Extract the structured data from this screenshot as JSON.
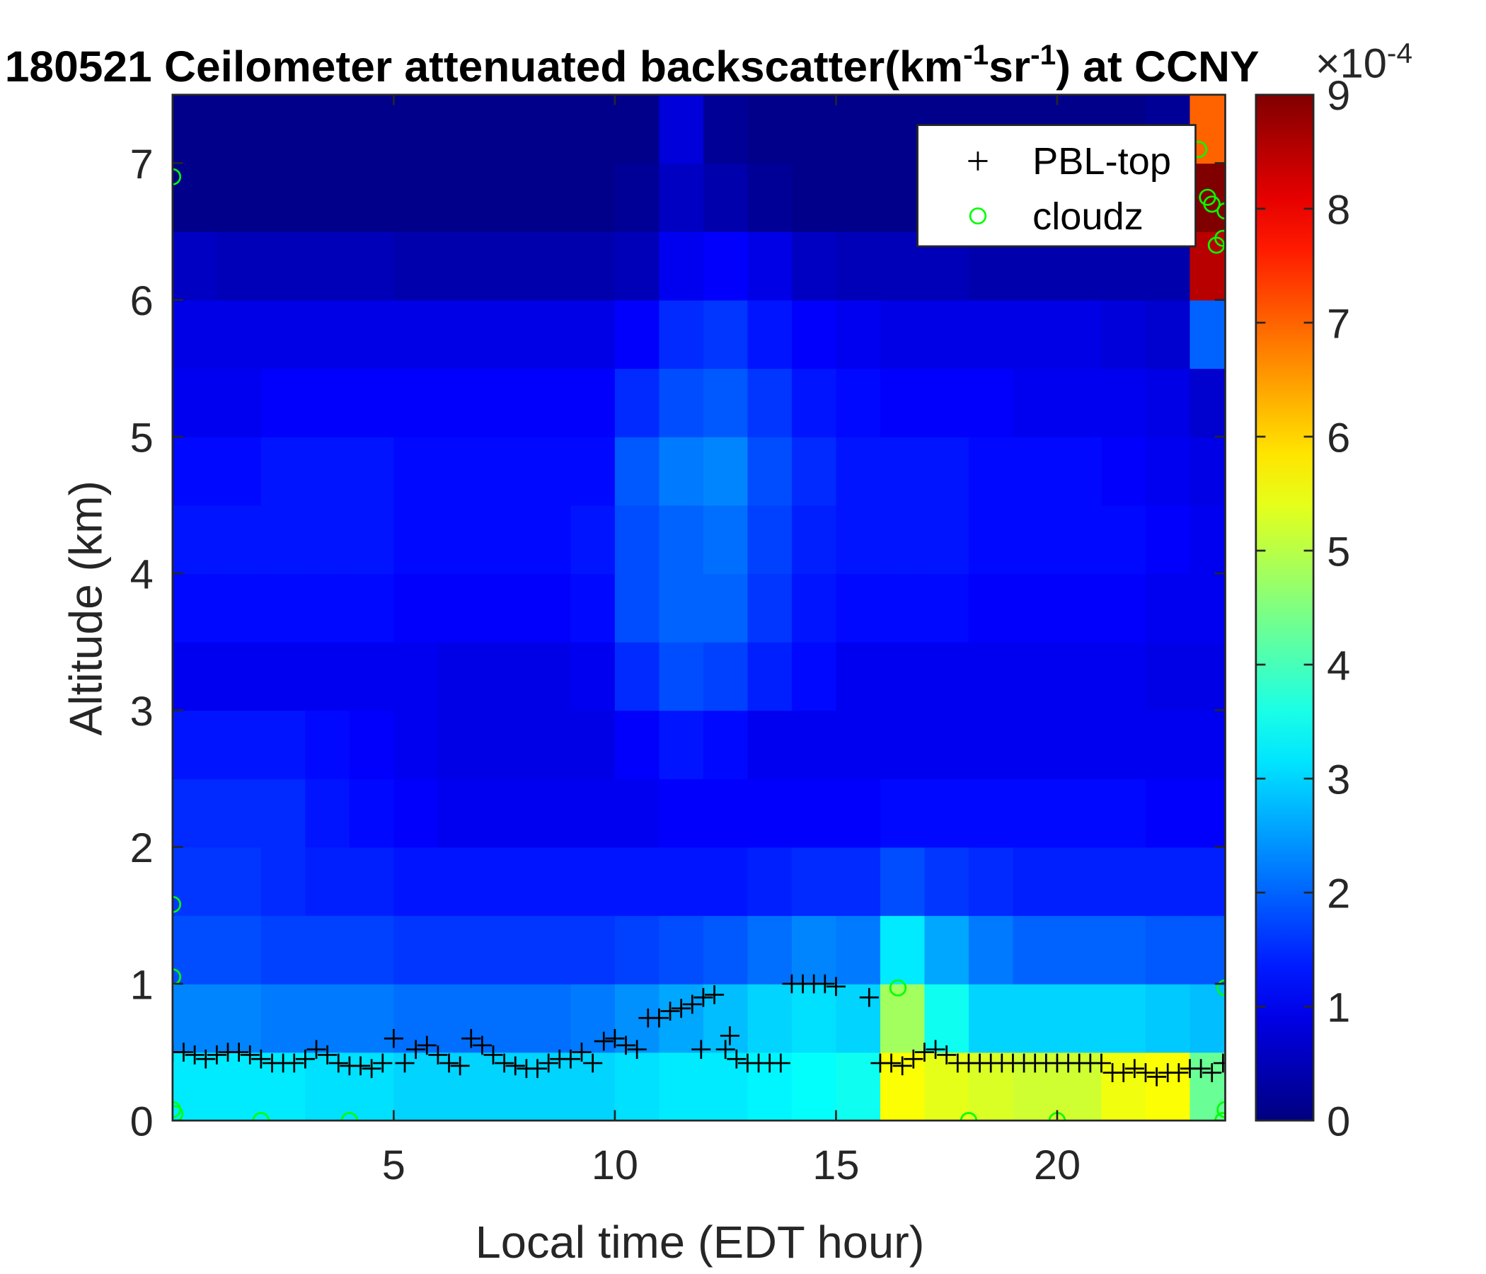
{
  "chart_data": {
    "type": "heatmap",
    "title_parts": [
      "180521 Ceilometer attenuated backscatter(km",
      "-1",
      "sr",
      "-1",
      ") at CCNY"
    ],
    "x_label": "Local time (EDT hour)",
    "y_label": "Altitude (km)",
    "xlim": [
      0,
      23.8
    ],
    "xticks": [
      5,
      10,
      15,
      20
    ],
    "ylim": [
      0,
      7.5
    ],
    "yticks": [
      0,
      1,
      2,
      3,
      4,
      5,
      6,
      7
    ],
    "clim": [
      0,
      9
    ],
    "cticks": [
      0,
      1,
      2,
      3,
      4,
      5,
      6,
      7,
      8,
      9
    ],
    "colorbar_multiplier": {
      "base": "×10",
      "exponent": "-4"
    },
    "colormap": "jet",
    "legend": "upper right",
    "z_x": [
      0.5,
      1.5,
      2.5,
      3.5,
      4.5,
      5.5,
      6.5,
      7.5,
      8.5,
      9.5,
      10.5,
      11.5,
      12.5,
      13.5,
      14.5,
      15.5,
      16.5,
      17.5,
      18.5,
      19.5,
      20.5,
      21.5,
      22.5,
      23.5
    ],
    "z_y": [
      0.25,
      0.75,
      1.25,
      1.75,
      2.25,
      2.75,
      3.25,
      3.75,
      4.25,
      4.75,
      5.25,
      5.75,
      6.25,
      6.75,
      7.25
    ],
    "z": [
      [
        3.2,
        3.2,
        3.2,
        3.1,
        3.1,
        3.0,
        3.0,
        3.0,
        3.0,
        3.0,
        3.1,
        3.2,
        3.2,
        3.3,
        3.4,
        3.5,
        5.6,
        5.4,
        5.3,
        5.2,
        5.2,
        5.5,
        5.6,
        4.3
      ],
      [
        2.3,
        2.3,
        2.2,
        2.2,
        2.2,
        2.1,
        2.1,
        2.1,
        2.1,
        2.2,
        2.4,
        2.6,
        2.8,
        3.0,
        3.1,
        3.0,
        4.8,
        3.5,
        3.0,
        3.0,
        3.0,
        3.0,
        2.9,
        2.8
      ],
      [
        1.8,
        1.8,
        1.7,
        1.7,
        1.7,
        1.6,
        1.6,
        1.6,
        1.6,
        1.6,
        1.7,
        1.8,
        1.9,
        2.1,
        2.3,
        2.2,
        3.2,
        2.6,
        2.2,
        2.0,
        2.0,
        2.0,
        1.9,
        1.9
      ],
      [
        1.6,
        1.6,
        1.5,
        1.4,
        1.4,
        1.3,
        1.3,
        1.3,
        1.3,
        1.3,
        1.3,
        1.3,
        1.3,
        1.4,
        1.5,
        1.5,
        1.8,
        1.6,
        1.5,
        1.4,
        1.4,
        1.4,
        1.4,
        1.4
      ],
      [
        1.5,
        1.5,
        1.5,
        1.3,
        1.2,
        1.1,
        1.0,
        1.0,
        1.0,
        1.0,
        1.0,
        1.1,
        1.1,
        1.1,
        1.1,
        1.1,
        1.2,
        1.2,
        1.2,
        1.2,
        1.2,
        1.2,
        1.1,
        1.1
      ],
      [
        1.3,
        1.3,
        1.3,
        1.2,
        1.1,
        1.0,
        0.9,
        0.9,
        0.9,
        0.9,
        1.1,
        1.3,
        1.2,
        1.0,
        1.0,
        1.0,
        1.0,
        1.0,
        1.0,
        1.0,
        1.0,
        1.0,
        1.0,
        1.0
      ],
      [
        1.0,
        1.0,
        1.0,
        1.0,
        1.0,
        1.0,
        0.9,
        0.9,
        0.9,
        1.0,
        1.5,
        1.8,
        1.7,
        1.4,
        1.2,
        1.0,
        1.0,
        1.0,
        1.0,
        1.0,
        1.0,
        1.0,
        0.9,
        0.9
      ],
      [
        1.2,
        1.2,
        1.2,
        1.2,
        1.2,
        1.1,
        1.1,
        1.1,
        1.1,
        1.2,
        1.8,
        2.0,
        2.0,
        1.6,
        1.3,
        1.2,
        1.2,
        1.2,
        1.1,
        1.1,
        1.1,
        1.1,
        1.0,
        1.0
      ],
      [
        1.3,
        1.3,
        1.3,
        1.3,
        1.3,
        1.2,
        1.2,
        1.2,
        1.2,
        1.3,
        1.8,
        2.0,
        2.1,
        1.7,
        1.4,
        1.3,
        1.3,
        1.3,
        1.2,
        1.2,
        1.2,
        1.2,
        1.1,
        1.0
      ],
      [
        1.2,
        1.2,
        1.3,
        1.3,
        1.3,
        1.2,
        1.2,
        1.2,
        1.2,
        1.2,
        1.9,
        2.2,
        2.3,
        1.8,
        1.5,
        1.3,
        1.3,
        1.3,
        1.2,
        1.2,
        1.2,
        1.1,
        1.0,
        0.9
      ],
      [
        1.0,
        1.0,
        1.1,
        1.1,
        1.1,
        1.1,
        1.1,
        1.1,
        1.1,
        1.1,
        1.5,
        1.8,
        1.9,
        1.6,
        1.3,
        1.2,
        1.1,
        1.1,
        1.1,
        1.0,
        1.0,
        1.0,
        0.9,
        0.7
      ],
      [
        0.9,
        0.9,
        0.9,
        0.9,
        0.9,
        0.9,
        0.9,
        0.9,
        0.9,
        0.9,
        1.1,
        1.5,
        1.6,
        1.3,
        1.1,
        1.0,
        0.9,
        0.9,
        0.9,
        0.9,
        0.9,
        0.8,
        0.7,
        2.0
      ],
      [
        0.6,
        0.5,
        0.5,
        0.5,
        0.5,
        0.4,
        0.4,
        0.4,
        0.4,
        0.4,
        0.5,
        1.0,
        1.1,
        0.9,
        0.6,
        0.5,
        0.5,
        0.5,
        0.4,
        0.4,
        0.4,
        0.4,
        0.4,
        8.5
      ],
      [
        0.1,
        0.1,
        0.1,
        0.1,
        0.1,
        0.1,
        0.1,
        0.1,
        0.1,
        0.1,
        0.2,
        0.6,
        0.4,
        0.2,
        0.1,
        0.1,
        0.1,
        0.1,
        0.1,
        0.1,
        0.1,
        0.1,
        0.1,
        9
      ],
      [
        0.1,
        0.1,
        0.1,
        0.1,
        0.1,
        0.1,
        0.1,
        0.1,
        0.1,
        0.1,
        0.1,
        0.8,
        0.2,
        0.1,
        0.1,
        0.1,
        0.1,
        0.1,
        0.1,
        0.1,
        0.1,
        0.1,
        0.2,
        7
      ]
    ],
    "series": [
      {
        "name": "PBL-top",
        "color": "#000000",
        "marker": "+",
        "x": [
          0,
          0.25,
          0.5,
          0.75,
          1,
          1.25,
          1.5,
          1.75,
          2,
          2.25,
          2.5,
          2.75,
          3,
          3.25,
          3.5,
          3.75,
          4,
          4.25,
          4.5,
          4.75,
          5,
          5.25,
          5.5,
          5.75,
          6,
          6.25,
          6.5,
          6.75,
          7,
          7.25,
          7.5,
          7.75,
          8,
          8.25,
          8.5,
          8.75,
          9,
          9.25,
          9.5,
          9.75,
          10,
          10.25,
          10.5,
          10.75,
          11,
          11.25,
          11.5,
          11.75,
          11.95,
          12,
          12.25,
          12.5,
          12.6,
          12.75,
          13,
          13.25,
          13.5,
          13.75,
          14,
          14.25,
          14.5,
          14.75,
          15,
          15.75,
          16,
          16.25,
          16.5,
          16.75,
          17,
          17.25,
          17.5,
          17.75,
          18,
          18.25,
          18.5,
          18.75,
          19,
          19.25,
          19.5,
          19.75,
          20,
          20.25,
          20.5,
          20.75,
          21,
          21.25,
          21.5,
          21.75,
          22,
          22.25,
          22.5,
          22.75,
          23,
          23.25,
          23.5,
          23.75
        ],
        "values": [
          0.5,
          0.5,
          0.48,
          0.45,
          0.48,
          0.5,
          0.5,
          0.48,
          0.45,
          0.42,
          0.42,
          0.42,
          0.45,
          0.52,
          0.48,
          0.42,
          0.4,
          0.4,
          0.38,
          0.42,
          0.6,
          0.42,
          0.52,
          0.55,
          0.48,
          0.42,
          0.4,
          0.6,
          0.55,
          0.48,
          0.42,
          0.4,
          0.38,
          0.38,
          0.42,
          0.45,
          0.45,
          0.5,
          0.42,
          0.58,
          0.6,
          0.55,
          0.52,
          0.75,
          0.75,
          0.8,
          0.82,
          0.85,
          0.52,
          0.9,
          0.92,
          0.52,
          0.62,
          0.45,
          0.42,
          0.42,
          0.42,
          0.42,
          1.0,
          1.0,
          1.0,
          1.0,
          0.98,
          0.9,
          0.42,
          0.42,
          0.4,
          0.45,
          0.5,
          0.52,
          0.48,
          0.42,
          0.42,
          0.42,
          0.42,
          0.42,
          0.42,
          0.42,
          0.42,
          0.42,
          0.42,
          0.42,
          0.42,
          0.42,
          0.42,
          0.35,
          0.35,
          0.38,
          0.35,
          0.32,
          0.35,
          0.35,
          0.38,
          0.38,
          0.35,
          0.42
        ]
      },
      {
        "name": "cloudz",
        "color": "#00ff00",
        "marker": "o",
        "x": [
          0,
          0,
          0,
          0,
          0.05,
          2,
          4,
          16.4,
          18,
          20,
          23.2,
          23.4,
          23.5,
          23.6,
          23.75,
          23.8,
          23.8,
          23.8,
          23.75
        ],
        "values": [
          6.9,
          1.58,
          1.05,
          0.08,
          0.05,
          0,
          0,
          0.97,
          0,
          0,
          7.1,
          6.75,
          6.7,
          6.4,
          6.45,
          6.65,
          0.97,
          0.08,
          0
        ]
      }
    ]
  }
}
